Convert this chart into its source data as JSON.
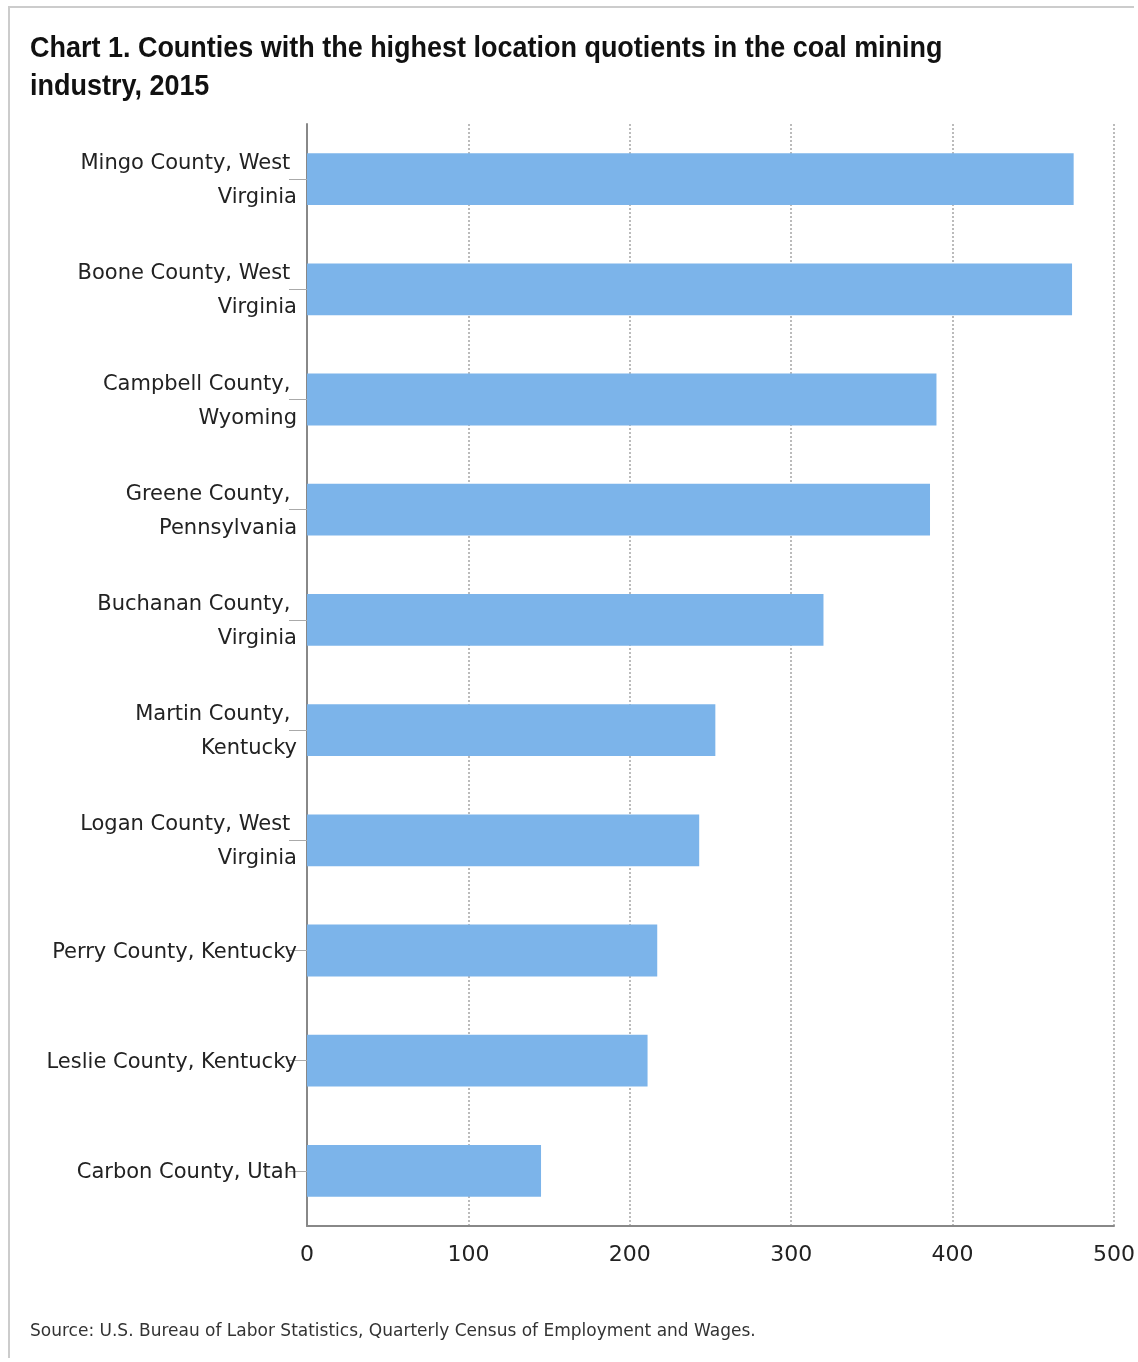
{
  "chart_data": {
    "type": "bar",
    "orientation": "horizontal",
    "title": "Chart 1. Counties with the highest location quotients in the coal mining industry, 2015",
    "categories": [
      "Mingo County, West Virginia",
      "Boone County, West Virginia",
      "Campbell County, Wyoming",
      "Greene County, Pennsylvania",
      "Buchanan County, Virginia",
      "Martin County, Kentucky",
      "Logan County, West Virginia",
      "Perry County, Kentucky",
      "Leslie County, Kentucky",
      "Carbon County, Utah"
    ],
    "values": [
      475,
      474,
      390,
      386,
      320,
      253,
      243,
      217,
      211,
      145
    ],
    "color": "#7cb4ea",
    "xlim": [
      0,
      500
    ],
    "xticks": [
      0,
      100,
      200,
      300,
      400,
      500
    ],
    "grid": "x",
    "annotations": [
      "Source: U.S. Bureau of Labor Statistics, Quarterly Census of Employment and Wages."
    ]
  }
}
